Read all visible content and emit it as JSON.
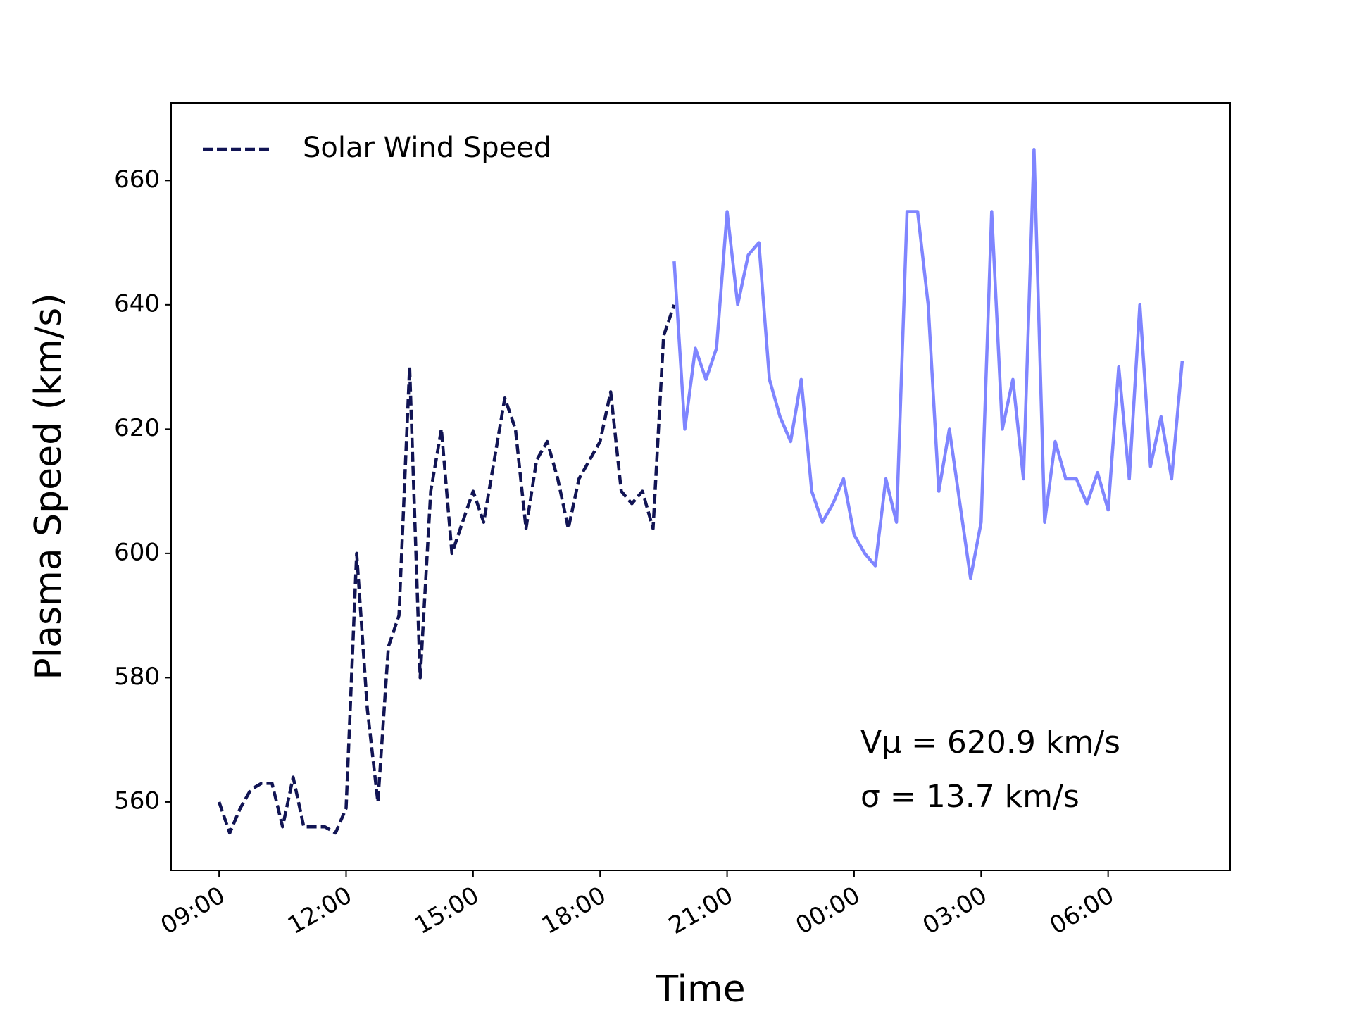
{
  "chart_data": {
    "type": "line",
    "xlabel": "Time",
    "ylabel": "Plasma Speed (km/s)",
    "legend": "upper left",
    "annotations": [
      "Vμ = 620.9 km/s",
      "σ = 13.7 km/s"
    ],
    "xlim": [
      "07:52",
      "08:53"
    ],
    "xticks": [
      "09:00",
      "12:00",
      "15:00",
      "18:00",
      "21:00",
      "00:00",
      "03:00",
      "06:00"
    ],
    "ylim": [
      549,
      672.5
    ],
    "yticks": [
      560,
      580,
      600,
      620,
      640,
      660
    ],
    "series": [
      {
        "name": "Solar Wind Speed",
        "color": "#111454",
        "linestyle": "dashed",
        "x": [
          "09:00",
          "09:15",
          "09:30",
          "09:45",
          "10:00",
          "10:15",
          "10:30",
          "10:45",
          "11:00",
          "11:15",
          "11:30",
          "11:45",
          "12:00",
          "12:15",
          "12:30",
          "12:45",
          "13:00",
          "13:15",
          "13:30",
          "13:45",
          "14:00",
          "14:15",
          "14:30",
          "14:45",
          "15:00",
          "15:15",
          "15:30",
          "15:45",
          "16:00",
          "16:15",
          "16:30",
          "16:45",
          "17:00",
          "17:15",
          "17:30",
          "17:45",
          "18:00",
          "18:15",
          "18:30",
          "18:45",
          "19:00",
          "19:15",
          "19:30",
          "19:45"
        ],
        "values": [
          560,
          555,
          559,
          562,
          563,
          563,
          556,
          564,
          556,
          556,
          556,
          555,
          559,
          600,
          575,
          560,
          585,
          590,
          630,
          580,
          610,
          620,
          600,
          605,
          610,
          605,
          615,
          625,
          620,
          604,
          615,
          618,
          612,
          604,
          612,
          615,
          618,
          626,
          610,
          608,
          610,
          604,
          635,
          640
        ]
      },
      {
        "color": "#7f85ff",
        "linestyle": "solid",
        "x": [
          "19:45",
          "20:00",
          "20:15",
          "20:30",
          "20:45",
          "21:00",
          "21:15",
          "21:30",
          "21:45",
          "22:00",
          "22:15",
          "22:30",
          "22:45",
          "23:00",
          "23:15",
          "23:30",
          "23:45",
          "00:00",
          "00:15",
          "00:30",
          "00:45",
          "01:00",
          "01:15",
          "01:30",
          "01:45",
          "02:00",
          "02:15",
          "02:30",
          "02:45",
          "03:00",
          "03:15",
          "03:30",
          "03:45",
          "04:00",
          "04:15",
          "04:30",
          "04:45",
          "05:00",
          "05:15",
          "05:30",
          "05:45",
          "06:00",
          "06:15",
          "06:30",
          "06:45",
          "07:00",
          "07:15",
          "07:30",
          "07:45"
        ],
        "values": [
          647,
          620,
          633,
          628,
          633,
          655,
          640,
          648,
          650,
          628,
          622,
          618,
          628,
          610,
          605,
          608,
          612,
          603,
          600,
          598,
          612,
          605,
          655,
          655,
          640,
          610,
          620,
          608,
          596,
          605,
          655,
          620,
          628,
          612,
          665,
          605,
          618,
          612,
          612,
          608,
          613,
          607,
          630,
          612,
          640,
          614,
          622,
          612,
          631
        ]
      }
    ]
  }
}
